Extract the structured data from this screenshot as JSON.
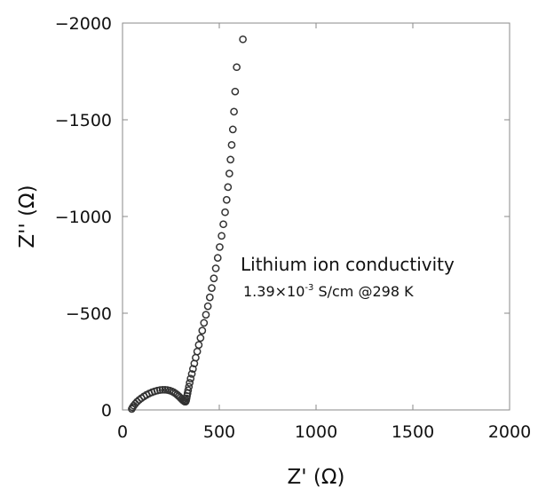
{
  "chart_data": {
    "type": "scatter",
    "title": "",
    "xlabel": "Z' (Ω)",
    "ylabel": "Z'' (Ω)",
    "xlim": [
      0,
      2000
    ],
    "ylim": [
      0,
      -2000
    ],
    "y_axis_inverted": true,
    "x_ticks": [
      0,
      500,
      1000,
      1500,
      2000
    ],
    "x_tick_labels": [
      "0",
      "500",
      "1000",
      "1500",
      "2000"
    ],
    "y_ticks": [
      0,
      -500,
      -1000,
      -1500,
      -2000
    ],
    "y_tick_labels": [
      "0",
      "−500",
      "−1000",
      "−1500",
      "−2000"
    ],
    "grid": false,
    "marker": "open-circle",
    "marker_color": "#333333",
    "annotation": {
      "line1": "Lithium ion conductivity",
      "line2_prefix": "1.39×10",
      "line2_sup": "-3",
      "line2_suffix": " S/cm @298 K"
    },
    "series": [
      {
        "values": [
          {
            "x": 48,
            "y": -5
          },
          {
            "x": 52,
            "y": -13
          },
          {
            "x": 58,
            "y": -22
          },
          {
            "x": 66,
            "y": -32
          },
          {
            "x": 75,
            "y": -42
          },
          {
            "x": 86,
            "y": -52
          },
          {
            "x": 98,
            "y": -61
          },
          {
            "x": 111,
            "y": -70
          },
          {
            "x": 124,
            "y": -78
          },
          {
            "x": 138,
            "y": -85
          },
          {
            "x": 152,
            "y": -91
          },
          {
            "x": 166,
            "y": -96
          },
          {
            "x": 180,
            "y": -100
          },
          {
            "x": 194,
            "y": -103
          },
          {
            "x": 207,
            "y": -104
          },
          {
            "x": 220,
            "y": -104
          },
          {
            "x": 232,
            "y": -103
          },
          {
            "x": 244,
            "y": -100
          },
          {
            "x": 255,
            "y": -96
          },
          {
            "x": 265,
            "y": -91
          },
          {
            "x": 274,
            "y": -85
          },
          {
            "x": 283,
            "y": -78
          },
          {
            "x": 291,
            "y": -71
          },
          {
            "x": 298,
            "y": -64
          },
          {
            "x": 305,
            "y": -57
          },
          {
            "x": 311,
            "y": -51
          },
          {
            "x": 317,
            "y": -46
          },
          {
            "x": 322,
            "y": -43
          },
          {
            "x": 326,
            "y": -43
          },
          {
            "x": 329,
            "y": -50
          },
          {
            "x": 331,
            "y": -60
          },
          {
            "x": 333,
            "y": -72
          },
          {
            "x": 336,
            "y": -86
          },
          {
            "x": 339,
            "y": -102
          },
          {
            "x": 343,
            "y": -120
          },
          {
            "x": 347,
            "y": -140
          },
          {
            "x": 352,
            "y": -162
          },
          {
            "x": 358,
            "y": -186
          },
          {
            "x": 364,
            "y": -212
          },
          {
            "x": 371,
            "y": -240
          },
          {
            "x": 378,
            "y": -270
          },
          {
            "x": 386,
            "y": -302
          },
          {
            "x": 394,
            "y": -336
          },
          {
            "x": 403,
            "y": -372
          },
          {
            "x": 412,
            "y": -410
          },
          {
            "x": 421,
            "y": -450
          },
          {
            "x": 431,
            "y": -492
          },
          {
            "x": 441,
            "y": -536
          },
          {
            "x": 451,
            "y": -582
          },
          {
            "x": 461,
            "y": -630
          },
          {
            "x": 472,
            "y": -680
          },
          {
            "x": 482,
            "y": -732
          },
          {
            "x": 492,
            "y": -786
          },
          {
            "x": 502,
            "y": -842
          },
          {
            "x": 512,
            "y": -900
          },
          {
            "x": 521,
            "y": -960
          },
          {
            "x": 530,
            "y": -1022
          },
          {
            "x": 538,
            "y": -1086
          },
          {
            "x": 545,
            "y": -1152
          },
          {
            "x": 552,
            "y": -1222
          },
          {
            "x": 558,
            "y": -1294
          },
          {
            "x": 564,
            "y": -1370
          },
          {
            "x": 570,
            "y": -1450
          },
          {
            "x": 576,
            "y": -1542
          },
          {
            "x": 582,
            "y": -1646
          },
          {
            "x": 590,
            "y": -1772
          },
          {
            "x": 622,
            "y": -1916
          }
        ]
      }
    ]
  }
}
